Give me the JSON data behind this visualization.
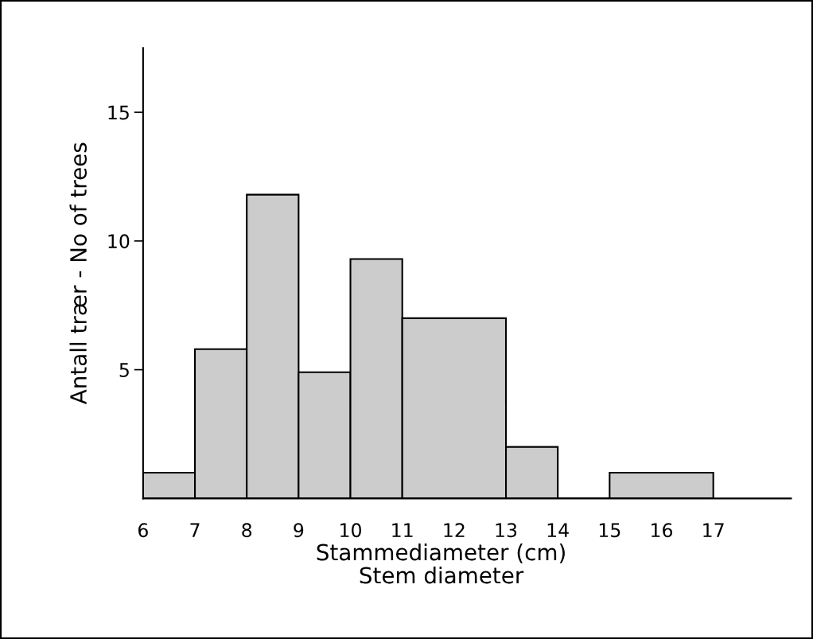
{
  "chart_data": {
    "type": "histogram",
    "xlabel": "Stammediameter (cm)\nStem diameter",
    "ylabel": "Antall trær - No of trees",
    "bins": [
      6,
      7,
      8,
      9,
      10,
      11,
      13,
      14,
      15,
      17
    ],
    "values": [
      1,
      5.8,
      11.8,
      4.9,
      9.3,
      7,
      2,
      0,
      1
    ],
    "color": "#cccccc",
    "xlim": [
      6,
      18.5
    ],
    "ylim": [
      0,
      17.5
    ],
    "xticks": [
      6,
      7,
      8,
      9,
      10,
      11,
      12,
      13,
      14,
      15,
      16,
      17
    ],
    "yticks": [
      5,
      10,
      15
    ],
    "grid": false
  }
}
